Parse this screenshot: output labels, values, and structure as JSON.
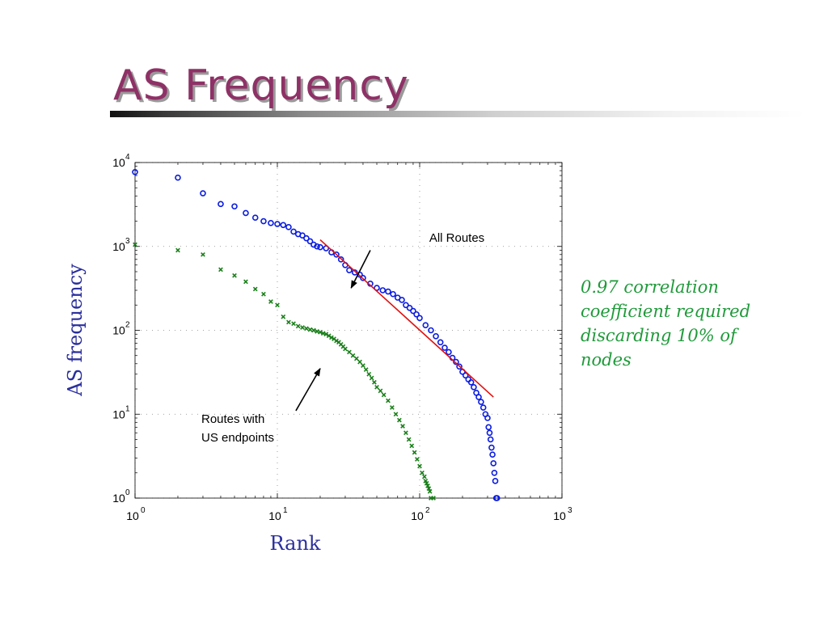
{
  "slide": {
    "title": "AS Frequency",
    "note_lines": [
      "0.97 correlation",
      "coefficient required",
      "discarding 10% of",
      "nodes"
    ]
  },
  "colors": {
    "title": "#8e3166",
    "axis_label": "#2b2f9c",
    "all_routes": "#0b1de0",
    "us_routes": "#1a7f1a",
    "fit_line": "#e01010",
    "note": "#1f9a3a"
  },
  "chart_data": {
    "type": "scatter",
    "xscale": "log",
    "yscale": "log",
    "xlim": [
      1,
      1000
    ],
    "ylim": [
      1,
      10000
    ],
    "xlabel": "Rank",
    "ylabel": "AS frequency",
    "x_ticks": [
      {
        "value": 1,
        "base": "10",
        "exp": "0"
      },
      {
        "value": 10,
        "base": "10",
        "exp": "1"
      },
      {
        "value": 100,
        "base": "10",
        "exp": "2"
      },
      {
        "value": 1000,
        "base": "10",
        "exp": "3"
      }
    ],
    "y_ticks": [
      {
        "value": 1,
        "base": "10",
        "exp": "0"
      },
      {
        "value": 10,
        "base": "10",
        "exp": "1"
      },
      {
        "value": 100,
        "base": "10",
        "exp": "2"
      },
      {
        "value": 1000,
        "base": "10",
        "exp": "3"
      },
      {
        "value": 10000,
        "base": "10",
        "exp": "4"
      }
    ],
    "grid": "dotted",
    "series": [
      {
        "marker": "circle",
        "x": [
          1,
          2,
          3,
          4,
          5,
          6,
          7,
          8,
          9,
          10,
          11,
          12,
          13,
          14,
          15,
          16,
          17,
          18,
          19,
          20,
          22,
          24,
          26,
          28,
          30,
          32,
          35,
          38,
          40,
          45,
          50,
          55,
          60,
          65,
          70,
          75,
          80,
          85,
          90,
          95,
          100,
          110,
          120,
          130,
          140,
          150,
          160,
          170,
          180,
          190,
          200,
          210,
          220,
          230,
          240,
          250,
          260,
          270,
          280,
          290,
          300,
          305,
          310,
          315,
          320,
          325,
          330,
          335,
          340,
          345,
          350
        ],
        "y": [
          7700,
          6600,
          4300,
          3200,
          3000,
          2500,
          2200,
          2000,
          1900,
          1850,
          1800,
          1700,
          1500,
          1400,
          1350,
          1250,
          1150,
          1050,
          1000,
          980,
          950,
          850,
          800,
          700,
          600,
          520,
          490,
          460,
          420,
          360,
          320,
          300,
          290,
          270,
          245,
          230,
          200,
          185,
          170,
          155,
          140,
          115,
          100,
          85,
          72,
          62,
          55,
          47,
          42,
          37,
          32,
          29,
          26,
          24,
          21,
          18,
          16,
          14,
          12,
          10,
          9,
          7,
          6,
          5,
          4,
          3.3,
          2.6,
          2,
          1.6,
          1,
          1
        ]
      },
      {
        "marker": "x",
        "x": [
          1,
          2,
          3,
          4,
          5,
          6,
          7,
          8,
          9,
          10,
          11,
          12,
          13,
          14,
          15,
          16,
          17,
          18,
          19,
          20,
          21,
          22,
          23,
          24,
          25,
          26,
          27,
          28,
          29,
          30,
          32,
          34,
          36,
          38,
          40,
          42,
          44,
          46,
          48,
          50,
          53,
          56,
          60,
          64,
          68,
          72,
          76,
          80,
          84,
          88,
          92,
          96,
          100,
          104,
          108,
          110,
          112,
          114,
          116,
          118,
          120,
          125
        ],
        "y": [
          1050,
          900,
          800,
          530,
          450,
          380,
          310,
          270,
          220,
          200,
          145,
          125,
          120,
          112,
          108,
          105,
          102,
          100,
          97,
          95,
          92,
          90,
          86,
          82,
          79,
          75,
          72,
          68,
          64,
          60,
          55,
          50,
          46,
          42,
          38,
          34,
          30,
          27,
          24,
          21,
          19,
          17,
          14.5,
          12,
          10,
          8.5,
          7.2,
          6,
          5,
          4.2,
          3.5,
          2.9,
          2.4,
          2.0,
          1.8,
          1.6,
          1.5,
          1.4,
          1.3,
          1.2,
          1.0,
          1.0
        ]
      },
      {
        "type": "line",
        "x": [
          20,
          330
        ],
        "y": [
          1200,
          16
        ]
      }
    ],
    "annotations": [
      {
        "text": "All Routes",
        "arrow_from": [
          45,
          900
        ],
        "arrow_to": [
          33,
          320
        ]
      },
      {
        "text": "Routes with\nUS endpoints",
        "arrow_from": [
          13.5,
          11
        ],
        "arrow_to": [
          20,
          35
        ]
      }
    ]
  }
}
